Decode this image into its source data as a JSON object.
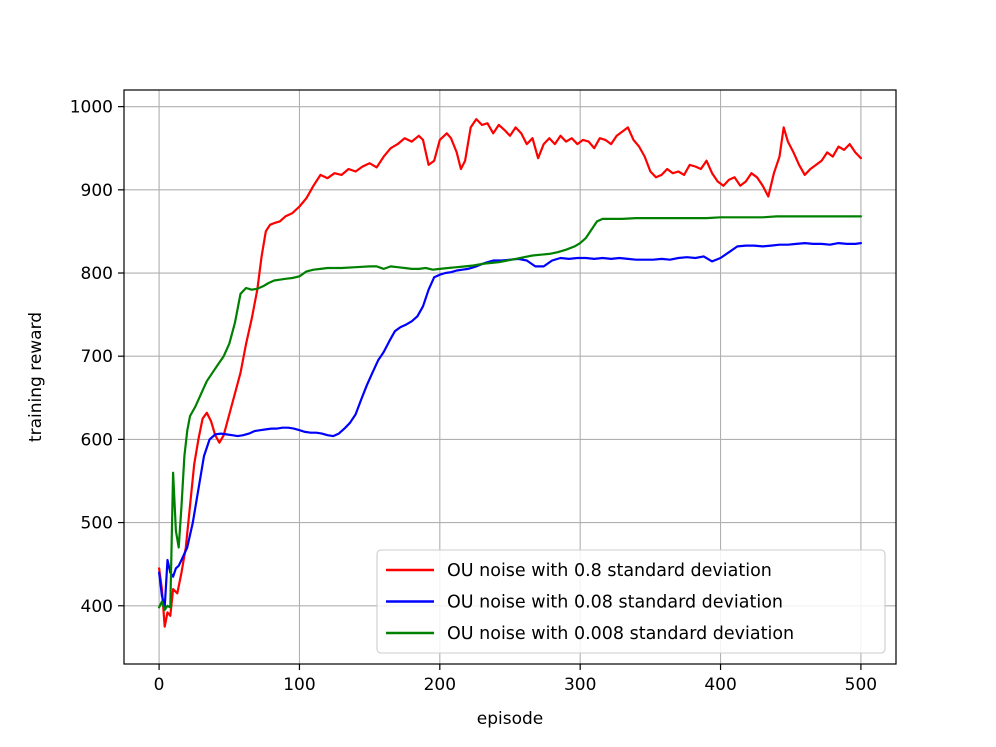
{
  "chart_data": {
    "type": "line",
    "title": "",
    "xlabel": "episode",
    "ylabel": "training reward",
    "xlim": [
      -25,
      525
    ],
    "ylim": [
      330,
      1020
    ],
    "xticks": [
      0,
      100,
      200,
      300,
      400,
      500
    ],
    "yticks": [
      400,
      500,
      600,
      700,
      800,
      900,
      1000
    ],
    "grid": true,
    "legend_position": "lower-right",
    "series": [
      {
        "name": "OU noise with 0.8 standard deviation",
        "color": "#ff0000",
        "points": [
          [
            0,
            445
          ],
          [
            2,
            420
          ],
          [
            4,
            375
          ],
          [
            6,
            392
          ],
          [
            8,
            388
          ],
          [
            10,
            420
          ],
          [
            13,
            415
          ],
          [
            16,
            440
          ],
          [
            19,
            470
          ],
          [
            22,
            520
          ],
          [
            25,
            570
          ],
          [
            28,
            600
          ],
          [
            31,
            625
          ],
          [
            34,
            632
          ],
          [
            37,
            622
          ],
          [
            40,
            605
          ],
          [
            43,
            596
          ],
          [
            46,
            605
          ],
          [
            50,
            630
          ],
          [
            54,
            655
          ],
          [
            58,
            680
          ],
          [
            62,
            715
          ],
          [
            66,
            745
          ],
          [
            70,
            780
          ],
          [
            73,
            820
          ],
          [
            76,
            850
          ],
          [
            79,
            858
          ],
          [
            82,
            860
          ],
          [
            86,
            862
          ],
          [
            90,
            868
          ],
          [
            95,
            872
          ],
          [
            100,
            880
          ],
          [
            105,
            890
          ],
          [
            110,
            905
          ],
          [
            115,
            918
          ],
          [
            120,
            914
          ],
          [
            125,
            920
          ],
          [
            130,
            918
          ],
          [
            135,
            925
          ],
          [
            140,
            922
          ],
          [
            145,
            928
          ],
          [
            150,
            932
          ],
          [
            155,
            927
          ],
          [
            160,
            940
          ],
          [
            165,
            950
          ],
          [
            170,
            955
          ],
          [
            175,
            962
          ],
          [
            180,
            958
          ],
          [
            185,
            965
          ],
          [
            188,
            960
          ],
          [
            192,
            930
          ],
          [
            196,
            935
          ],
          [
            200,
            960
          ],
          [
            205,
            968
          ],
          [
            208,
            962
          ],
          [
            212,
            945
          ],
          [
            215,
            925
          ],
          [
            218,
            935
          ],
          [
            222,
            975
          ],
          [
            226,
            985
          ],
          [
            230,
            978
          ],
          [
            234,
            980
          ],
          [
            238,
            968
          ],
          [
            242,
            978
          ],
          [
            246,
            972
          ],
          [
            250,
            965
          ],
          [
            254,
            975
          ],
          [
            258,
            968
          ],
          [
            262,
            955
          ],
          [
            266,
            962
          ],
          [
            270,
            938
          ],
          [
            274,
            955
          ],
          [
            278,
            962
          ],
          [
            282,
            955
          ],
          [
            286,
            965
          ],
          [
            290,
            958
          ],
          [
            294,
            962
          ],
          [
            298,
            955
          ],
          [
            302,
            960
          ],
          [
            306,
            958
          ],
          [
            310,
            950
          ],
          [
            314,
            962
          ],
          [
            318,
            960
          ],
          [
            322,
            955
          ],
          [
            326,
            965
          ],
          [
            330,
            970
          ],
          [
            334,
            975
          ],
          [
            338,
            960
          ],
          [
            342,
            952
          ],
          [
            346,
            940
          ],
          [
            350,
            922
          ],
          [
            354,
            915
          ],
          [
            358,
            918
          ],
          [
            362,
            925
          ],
          [
            366,
            920
          ],
          [
            370,
            922
          ],
          [
            374,
            918
          ],
          [
            378,
            930
          ],
          [
            382,
            928
          ],
          [
            386,
            925
          ],
          [
            390,
            935
          ],
          [
            394,
            920
          ],
          [
            398,
            910
          ],
          [
            402,
            905
          ],
          [
            406,
            912
          ],
          [
            410,
            915
          ],
          [
            414,
            905
          ],
          [
            418,
            910
          ],
          [
            422,
            920
          ],
          [
            426,
            915
          ],
          [
            430,
            905
          ],
          [
            434,
            892
          ],
          [
            438,
            920
          ],
          [
            442,
            940
          ],
          [
            445,
            975
          ],
          [
            448,
            958
          ],
          [
            452,
            945
          ],
          [
            456,
            930
          ],
          [
            460,
            918
          ],
          [
            464,
            925
          ],
          [
            468,
            930
          ],
          [
            472,
            935
          ],
          [
            476,
            945
          ],
          [
            480,
            940
          ],
          [
            484,
            952
          ],
          [
            488,
            948
          ],
          [
            492,
            955
          ],
          [
            496,
            945
          ],
          [
            500,
            938
          ]
        ]
      },
      {
        "name": "OU noise with 0.08 standard deviation",
        "color": "#0000ff",
        "points": [
          [
            0,
            440
          ],
          [
            2,
            412
          ],
          [
            4,
            398
          ],
          [
            6,
            455
          ],
          [
            8,
            440
          ],
          [
            10,
            435
          ],
          [
            12,
            445
          ],
          [
            14,
            448
          ],
          [
            16,
            455
          ],
          [
            20,
            470
          ],
          [
            24,
            500
          ],
          [
            28,
            540
          ],
          [
            32,
            580
          ],
          [
            36,
            600
          ],
          [
            40,
            606
          ],
          [
            44,
            607
          ],
          [
            48,
            606
          ],
          [
            52,
            605
          ],
          [
            56,
            604
          ],
          [
            60,
            605
          ],
          [
            64,
            607
          ],
          [
            68,
            610
          ],
          [
            72,
            611
          ],
          [
            76,
            612
          ],
          [
            80,
            613
          ],
          [
            84,
            613
          ],
          [
            88,
            614
          ],
          [
            92,
            614
          ],
          [
            96,
            613
          ],
          [
            100,
            611
          ],
          [
            104,
            609
          ],
          [
            108,
            608
          ],
          [
            112,
            608
          ],
          [
            116,
            607
          ],
          [
            120,
            605
          ],
          [
            124,
            604
          ],
          [
            128,
            607
          ],
          [
            132,
            613
          ],
          [
            136,
            620
          ],
          [
            140,
            630
          ],
          [
            144,
            648
          ],
          [
            148,
            665
          ],
          [
            152,
            680
          ],
          [
            156,
            695
          ],
          [
            160,
            705
          ],
          [
            164,
            718
          ],
          [
            168,
            730
          ],
          [
            172,
            735
          ],
          [
            176,
            738
          ],
          [
            180,
            742
          ],
          [
            184,
            748
          ],
          [
            188,
            760
          ],
          [
            192,
            780
          ],
          [
            196,
            795
          ],
          [
            200,
            798
          ],
          [
            204,
            800
          ],
          [
            208,
            801
          ],
          [
            212,
            803
          ],
          [
            216,
            804
          ],
          [
            220,
            805
          ],
          [
            226,
            808
          ],
          [
            232,
            812
          ],
          [
            238,
            815
          ],
          [
            244,
            815
          ],
          [
            250,
            816
          ],
          [
            256,
            817
          ],
          [
            262,
            815
          ],
          [
            268,
            808
          ],
          [
            274,
            808
          ],
          [
            280,
            815
          ],
          [
            286,
            818
          ],
          [
            292,
            817
          ],
          [
            298,
            818
          ],
          [
            304,
            818
          ],
          [
            310,
            817
          ],
          [
            316,
            818
          ],
          [
            322,
            817
          ],
          [
            328,
            818
          ],
          [
            334,
            817
          ],
          [
            340,
            816
          ],
          [
            346,
            816
          ],
          [
            352,
            816
          ],
          [
            358,
            817
          ],
          [
            364,
            816
          ],
          [
            370,
            818
          ],
          [
            376,
            819
          ],
          [
            382,
            818
          ],
          [
            388,
            820
          ],
          [
            394,
            814
          ],
          [
            400,
            818
          ],
          [
            406,
            825
          ],
          [
            412,
            832
          ],
          [
            418,
            833
          ],
          [
            424,
            833
          ],
          [
            430,
            832
          ],
          [
            436,
            833
          ],
          [
            442,
            834
          ],
          [
            448,
            834
          ],
          [
            454,
            835
          ],
          [
            460,
            836
          ],
          [
            466,
            835
          ],
          [
            472,
            835
          ],
          [
            478,
            834
          ],
          [
            484,
            836
          ],
          [
            490,
            835
          ],
          [
            496,
            835
          ],
          [
            500,
            836
          ]
        ]
      },
      {
        "name": "OU noise with 0.008 standard deviation",
        "color": "#008000",
        "points": [
          [
            0,
            398
          ],
          [
            2,
            405
          ],
          [
            4,
            395
          ],
          [
            6,
            400
          ],
          [
            8,
            398
          ],
          [
            10,
            560
          ],
          [
            12,
            490
          ],
          [
            14,
            470
          ],
          [
            16,
            520
          ],
          [
            18,
            580
          ],
          [
            20,
            610
          ],
          [
            22,
            628
          ],
          [
            26,
            640
          ],
          [
            30,
            655
          ],
          [
            34,
            670
          ],
          [
            38,
            680
          ],
          [
            42,
            690
          ],
          [
            46,
            700
          ],
          [
            50,
            715
          ],
          [
            54,
            740
          ],
          [
            58,
            775
          ],
          [
            62,
            782
          ],
          [
            66,
            780
          ],
          [
            70,
            781
          ],
          [
            74,
            784
          ],
          [
            78,
            788
          ],
          [
            82,
            791
          ],
          [
            86,
            792
          ],
          [
            90,
            793
          ],
          [
            95,
            794
          ],
          [
            100,
            796
          ],
          [
            105,
            802
          ],
          [
            110,
            804
          ],
          [
            115,
            805
          ],
          [
            120,
            806
          ],
          [
            130,
            806
          ],
          [
            140,
            807
          ],
          [
            150,
            808
          ],
          [
            155,
            808
          ],
          [
            160,
            805
          ],
          [
            165,
            808
          ],
          [
            170,
            807
          ],
          [
            175,
            806
          ],
          [
            180,
            805
          ],
          [
            185,
            805
          ],
          [
            190,
            806
          ],
          [
            195,
            804
          ],
          [
            200,
            805
          ],
          [
            206,
            806
          ],
          [
            212,
            807
          ],
          [
            218,
            808
          ],
          [
            224,
            809
          ],
          [
            230,
            811
          ],
          [
            236,
            812
          ],
          [
            242,
            813
          ],
          [
            248,
            815
          ],
          [
            254,
            817
          ],
          [
            260,
            819
          ],
          [
            266,
            821
          ],
          [
            272,
            822
          ],
          [
            278,
            823
          ],
          [
            284,
            825
          ],
          [
            290,
            828
          ],
          [
            296,
            832
          ],
          [
            300,
            836
          ],
          [
            304,
            842
          ],
          [
            308,
            852
          ],
          [
            312,
            862
          ],
          [
            316,
            865
          ],
          [
            322,
            865
          ],
          [
            330,
            865
          ],
          [
            340,
            866
          ],
          [
            350,
            866
          ],
          [
            360,
            866
          ],
          [
            370,
            866
          ],
          [
            380,
            866
          ],
          [
            390,
            866
          ],
          [
            400,
            867
          ],
          [
            410,
            867
          ],
          [
            420,
            867
          ],
          [
            430,
            867
          ],
          [
            440,
            868
          ],
          [
            450,
            868
          ],
          [
            460,
            868
          ],
          [
            470,
            868
          ],
          [
            480,
            868
          ],
          [
            490,
            868
          ],
          [
            500,
            868
          ]
        ]
      }
    ]
  }
}
